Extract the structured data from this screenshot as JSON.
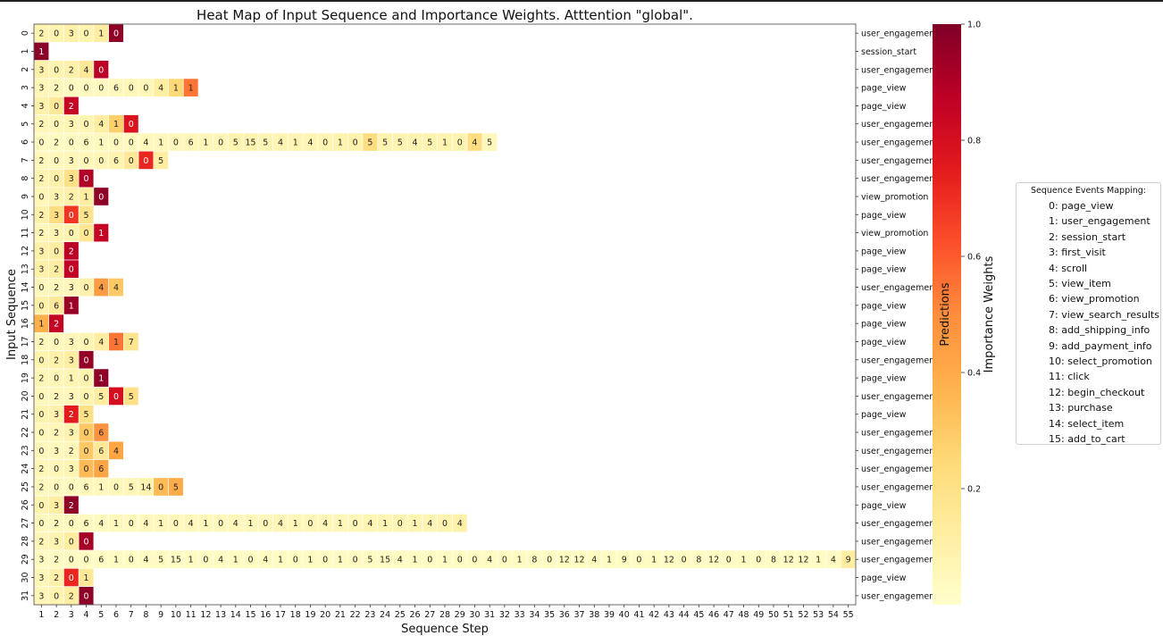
{
  "chart_data": {
    "type": "heatmap",
    "title": "Heat Map of Input Sequence and Importance Weights. Atttention \"global\".",
    "xlabel": "Sequence Step",
    "ylabel": "Input Sequence",
    "x_ticks": [
      "1",
      "2",
      "3",
      "4",
      "5",
      "6",
      "7",
      "8",
      "9",
      "10",
      "11",
      "12",
      "13",
      "14",
      "15",
      "16",
      "17",
      "18",
      "19",
      "20",
      "21",
      "22",
      "23",
      "24",
      "25",
      "26",
      "27",
      "28",
      "29",
      "30",
      "31",
      "32",
      "33",
      "34",
      "35",
      "36",
      "37",
      "38",
      "39",
      "40",
      "41",
      "42",
      "43",
      "44",
      "45",
      "46",
      "47",
      "48",
      "49",
      "50",
      "51",
      "52",
      "53",
      "54",
      "55"
    ],
    "y_ticks": [
      "0",
      "1",
      "2",
      "3",
      "4",
      "5",
      "6",
      "7",
      "8",
      "9",
      "10",
      "11",
      "12",
      "13",
      "14",
      "15",
      "16",
      "17",
      "18",
      "19",
      "20",
      "21",
      "22",
      "23",
      "24",
      "25",
      "26",
      "27",
      "28",
      "29",
      "30",
      "31"
    ],
    "rows": [
      {
        "v": [
          2,
          0,
          3,
          0,
          1,
          0
        ],
        "w": [
          0.08,
          0.08,
          0.1,
          0.08,
          0.12,
          0.97
        ]
      },
      {
        "v": [
          1
        ],
        "w": [
          0.98
        ]
      },
      {
        "v": [
          3,
          0,
          2,
          4,
          0
        ],
        "w": [
          0.1,
          0.08,
          0.1,
          0.15,
          0.88
        ]
      },
      {
        "v": [
          3,
          2,
          0,
          0,
          0,
          6,
          0,
          0,
          4,
          1,
          1
        ],
        "w": [
          0.06,
          0.05,
          0.04,
          0.04,
          0.04,
          0.05,
          0.06,
          0.06,
          0.12,
          0.25,
          0.55
        ]
      },
      {
        "v": [
          3,
          0,
          2
        ],
        "w": [
          0.1,
          0.15,
          0.85
        ]
      },
      {
        "v": [
          2,
          0,
          3,
          0,
          4,
          1,
          0
        ],
        "w": [
          0.06,
          0.06,
          0.07,
          0.07,
          0.12,
          0.28,
          0.78
        ]
      },
      {
        "v": [
          0,
          2,
          0,
          6,
          1,
          0,
          0,
          4,
          1,
          0,
          6,
          1,
          0,
          5,
          15,
          5,
          4,
          1,
          4,
          0,
          1,
          0,
          5,
          5,
          5,
          4,
          5,
          1,
          0,
          4,
          5
        ],
        "w": [
          0.03,
          0.03,
          0.03,
          0.04,
          0.04,
          0.04,
          0.04,
          0.05,
          0.05,
          0.05,
          0.06,
          0.06,
          0.06,
          0.08,
          0.08,
          0.07,
          0.07,
          0.07,
          0.07,
          0.07,
          0.08,
          0.09,
          0.22,
          0.08,
          0.08,
          0.08,
          0.08,
          0.08,
          0.08,
          0.22,
          0.05
        ]
      },
      {
        "v": [
          2,
          0,
          3,
          0,
          0,
          6,
          0,
          0,
          5
        ],
        "w": [
          0.05,
          0.05,
          0.06,
          0.06,
          0.06,
          0.08,
          0.15,
          0.72,
          0.12
        ]
      },
      {
        "v": [
          2,
          0,
          3,
          0
        ],
        "w": [
          0.08,
          0.1,
          0.2,
          0.9
        ]
      },
      {
        "v": [
          0,
          3,
          2,
          1,
          0
        ],
        "w": [
          0.06,
          0.08,
          0.1,
          0.12,
          0.97
        ]
      },
      {
        "v": [
          2,
          3,
          0,
          5
        ],
        "w": [
          0.1,
          0.22,
          0.68,
          0.18
        ]
      },
      {
        "v": [
          2,
          3,
          0,
          0,
          1
        ],
        "w": [
          0.06,
          0.07,
          0.08,
          0.16,
          0.85
        ]
      },
      {
        "v": [
          3,
          0,
          2
        ],
        "w": [
          0.1,
          0.12,
          0.88
        ]
      },
      {
        "v": [
          3,
          2,
          0
        ],
        "w": [
          0.1,
          0.12,
          0.86
        ]
      },
      {
        "v": [
          0,
          2,
          3,
          0,
          4,
          4
        ],
        "w": [
          0.05,
          0.05,
          0.06,
          0.1,
          0.45,
          0.3
        ]
      },
      {
        "v": [
          0,
          6,
          1
        ],
        "w": [
          0.1,
          0.15,
          0.95
        ]
      },
      {
        "v": [
          1,
          2
        ],
        "w": [
          0.38,
          0.85
        ]
      },
      {
        "v": [
          2,
          0,
          3,
          0,
          4,
          1,
          7
        ],
        "w": [
          0.05,
          0.05,
          0.06,
          0.07,
          0.12,
          0.55,
          0.18
        ]
      },
      {
        "v": [
          0,
          2,
          3,
          0
        ],
        "w": [
          0.08,
          0.1,
          0.12,
          0.96
        ]
      },
      {
        "v": [
          2,
          0,
          1,
          0,
          1
        ],
        "w": [
          0.06,
          0.06,
          0.07,
          0.08,
          0.97
        ]
      },
      {
        "v": [
          0,
          2,
          3,
          0,
          5,
          0,
          5
        ],
        "w": [
          0.05,
          0.05,
          0.06,
          0.08,
          0.12,
          0.8,
          0.2
        ]
      },
      {
        "v": [
          0,
          3,
          2,
          5
        ],
        "w": [
          0.08,
          0.1,
          0.75,
          0.2
        ]
      },
      {
        "v": [
          0,
          2,
          3,
          0,
          6
        ],
        "w": [
          0.05,
          0.06,
          0.08,
          0.3,
          0.48
        ]
      },
      {
        "v": [
          0,
          3,
          2,
          0,
          6,
          4
        ],
        "w": [
          0.05,
          0.05,
          0.06,
          0.3,
          0.15,
          0.42
        ]
      },
      {
        "v": [
          2,
          0,
          3,
          0,
          6
        ],
        "w": [
          0.06,
          0.06,
          0.07,
          0.35,
          0.42
        ]
      },
      {
        "v": [
          2,
          0,
          0,
          6,
          1,
          0,
          5,
          14,
          0,
          5
        ],
        "w": [
          0.04,
          0.04,
          0.04,
          0.05,
          0.05,
          0.05,
          0.06,
          0.08,
          0.35,
          0.4
        ]
      },
      {
        "v": [
          0,
          3,
          2
        ],
        "w": [
          0.08,
          0.12,
          0.97
        ]
      },
      {
        "v": [
          0,
          2,
          0,
          6,
          4,
          1,
          0,
          4,
          1,
          0,
          4,
          1,
          0,
          4,
          1,
          0,
          4,
          1,
          0,
          4,
          1,
          0,
          4,
          1,
          0,
          1,
          4,
          0,
          4
        ],
        "w": [
          0.04,
          0.04,
          0.04,
          0.04,
          0.04,
          0.04,
          0.04,
          0.05,
          0.05,
          0.05,
          0.05,
          0.05,
          0.05,
          0.05,
          0.05,
          0.05,
          0.06,
          0.06,
          0.06,
          0.06,
          0.06,
          0.06,
          0.07,
          0.07,
          0.07,
          0.07,
          0.07,
          0.08,
          0.1
        ]
      },
      {
        "v": [
          2,
          3,
          0,
          0
        ],
        "w": [
          0.06,
          0.08,
          0.12,
          0.92
        ]
      },
      {
        "v": [
          3,
          2,
          0,
          0,
          6,
          1,
          0,
          4,
          5,
          15,
          1,
          0,
          4,
          1,
          0,
          4,
          1,
          0,
          1,
          0,
          1,
          0,
          5,
          15,
          4,
          1,
          0,
          1,
          0,
          0,
          4,
          0,
          1,
          8,
          0,
          12,
          12,
          4,
          1,
          9,
          0,
          1,
          12,
          0,
          8,
          12,
          0,
          1,
          0,
          8,
          12,
          12,
          1,
          4,
          9
        ],
        "w": [
          0.03,
          0.03,
          0.03,
          0.03,
          0.03,
          0.03,
          0.03,
          0.03,
          0.03,
          0.03,
          0.03,
          0.03,
          0.03,
          0.03,
          0.03,
          0.03,
          0.03,
          0.03,
          0.03,
          0.03,
          0.03,
          0.03,
          0.03,
          0.03,
          0.03,
          0.03,
          0.03,
          0.03,
          0.03,
          0.03,
          0.03,
          0.03,
          0.03,
          0.03,
          0.03,
          0.03,
          0.03,
          0.03,
          0.03,
          0.03,
          0.03,
          0.03,
          0.03,
          0.03,
          0.03,
          0.03,
          0.03,
          0.03,
          0.03,
          0.03,
          0.03,
          0.03,
          0.03,
          0.03,
          0.12
        ]
      },
      {
        "v": [
          3,
          2,
          0,
          1
        ],
        "w": [
          0.06,
          0.1,
          0.72,
          0.15
        ]
      },
      {
        "v": [
          3,
          0,
          2,
          0
        ],
        "w": [
          0.06,
          0.08,
          0.12,
          0.97
        ]
      }
    ],
    "predictions": [
      "user_engagement",
      "session_start",
      "user_engagement",
      "page_view",
      "page_view",
      "user_engagement",
      "user_engagement",
      "user_engagement",
      "user_engagement",
      "view_promotion",
      "page_view",
      "view_promotion",
      "page_view",
      "page_view",
      "user_engagement",
      "page_view",
      "page_view",
      "page_view",
      "user_engagement",
      "page_view",
      "user_engagement",
      "page_view",
      "user_engagement",
      "user_engagement",
      "user_engagement",
      "user_engagement",
      "page_view",
      "user_engagement",
      "user_engagement",
      "user_engagement",
      "page_view",
      "user_engagement"
    ],
    "predictions_label": "Predictions",
    "colorbar": {
      "label": "Importance Weights",
      "min": 0,
      "max": 1.0,
      "ticks": [
        "0.2",
        "0.4",
        "0.6",
        "0.8",
        "1.0"
      ],
      "colors": [
        "#ffffcc",
        "#ffeda0",
        "#fed976",
        "#feb24c",
        "#fd8d3c",
        "#fc4e2a",
        "#e31a1c",
        "#bd0026",
        "#800026"
      ]
    },
    "legend": {
      "title": "Sequence Events Mapping:",
      "items": [
        "0: page_view",
        "1: user_engagement",
        "2: session_start",
        "3: first_visit",
        "4: scroll",
        "5: view_item",
        "6: view_promotion",
        "7: view_search_results",
        "8: add_shipping_info",
        "9: add_payment_info",
        "10: select_promotion",
        "11: click",
        "12: begin_checkout",
        "13: purchase",
        "14: select_item",
        "15: add_to_cart"
      ]
    }
  }
}
